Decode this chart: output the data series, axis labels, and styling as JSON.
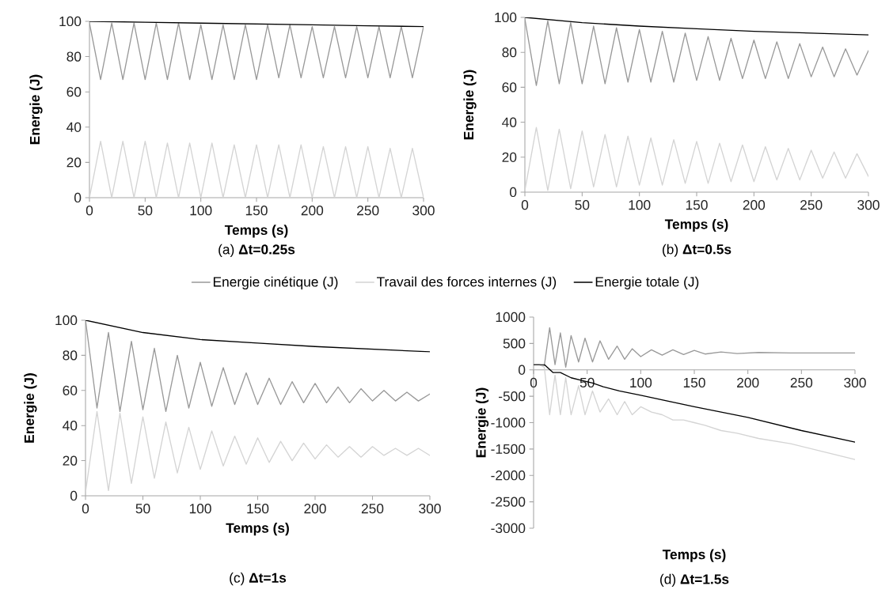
{
  "chart_data": [
    {
      "type": "line",
      "title": "(a) **Δt=0.25s**",
      "xlabel": "Temps (s)",
      "ylabel": "Energie (J)",
      "xlim": [
        0,
        300
      ],
      "ylim": [
        0,
        100
      ],
      "xticks": [
        0,
        50,
        100,
        150,
        200,
        250,
        300
      ],
      "yticks": [
        0,
        20,
        40,
        60,
        80,
        100
      ],
      "x": [
        0,
        10,
        20,
        30,
        40,
        50,
        60,
        70,
        80,
        90,
        100,
        110,
        120,
        130,
        140,
        150,
        160,
        170,
        180,
        190,
        200,
        210,
        220,
        230,
        240,
        250,
        260,
        270,
        280,
        290,
        300
      ],
      "series": [
        {
          "color": "#999999",
          "values": [
            99,
            67,
            99,
            67,
            99,
            67,
            99,
            67,
            99,
            67,
            98,
            67,
            98,
            67,
            98,
            67,
            98,
            68,
            98,
            68,
            97,
            68,
            97,
            68,
            97,
            68,
            97,
            68,
            97,
            68,
            97
          ]
        },
        {
          "color": "#d4d4d4",
          "values": [
            0,
            32,
            0,
            32,
            0,
            32,
            0,
            31,
            0,
            31,
            0,
            31,
            0,
            30,
            0,
            30,
            0,
            30,
            0,
            30,
            0,
            29,
            0,
            29,
            0,
            29,
            0,
            28,
            0,
            28,
            0
          ]
        },
        {
          "color": "#000000",
          "x": [
            0,
            50,
            100,
            150,
            200,
            250,
            300
          ],
          "values": [
            100,
            99.5,
            99,
            98.5,
            98,
            97.5,
            97
          ]
        }
      ]
    },
    {
      "type": "line",
      "title": "(b) **Δt=0.5s**",
      "xlabel": "Temps (s)",
      "ylabel": "Energie (J)",
      "xlim": [
        0,
        300
      ],
      "ylim": [
        0,
        100
      ],
      "xticks": [
        0,
        50,
        100,
        150,
        200,
        250,
        300
      ],
      "yticks": [
        0,
        20,
        40,
        60,
        80,
        100
      ],
      "x": [
        0,
        10,
        20,
        30,
        40,
        50,
        60,
        70,
        80,
        90,
        100,
        110,
        120,
        130,
        140,
        150,
        160,
        170,
        180,
        190,
        200,
        210,
        220,
        230,
        240,
        250,
        260,
        270,
        280,
        290,
        300
      ],
      "series": [
        {
          "color": "#999999",
          "values": [
            99,
            61,
            98,
            62,
            97,
            62,
            95,
            62,
            94,
            63,
            93,
            63,
            92,
            63,
            91,
            64,
            89,
            64,
            88,
            65,
            87,
            65,
            86,
            65,
            85,
            66,
            83,
            66,
            82,
            67,
            81
          ]
        },
        {
          "color": "#d4d4d4",
          "values": [
            1,
            37,
            1,
            36,
            2,
            35,
            3,
            33,
            3,
            32,
            4,
            31,
            4,
            30,
            5,
            29,
            5,
            28,
            6,
            27,
            6,
            26,
            7,
            25,
            7,
            24,
            8,
            23,
            8,
            22,
            9
          ]
        },
        {
          "color": "#000000",
          "x": [
            0,
            50,
            100,
            150,
            200,
            250,
            300
          ],
          "values": [
            100,
            97,
            95,
            93.5,
            92,
            91,
            90
          ]
        }
      ]
    },
    {
      "type": "line",
      "title": "(c) **Δt=1s**",
      "xlabel": "Temps (s)",
      "ylabel": "Energie (J)",
      "xlim": [
        0,
        300
      ],
      "ylim": [
        0,
        100
      ],
      "xticks": [
        0,
        50,
        100,
        150,
        200,
        250,
        300
      ],
      "yticks": [
        0,
        20,
        40,
        60,
        80,
        100
      ],
      "legend": "top",
      "x": [
        0,
        10,
        20,
        30,
        40,
        50,
        60,
        70,
        80,
        90,
        100,
        110,
        120,
        130,
        140,
        150,
        160,
        170,
        180,
        190,
        200,
        210,
        220,
        230,
        240,
        250,
        260,
        270,
        280,
        290,
        300
      ],
      "series": [
        {
          "name": "Energie cinétique (J)",
          "color": "#999999",
          "values": [
            100,
            50,
            93,
            48,
            88,
            49,
            84,
            48,
            80,
            50,
            76,
            51,
            73,
            52,
            70,
            52,
            67,
            52,
            65,
            53,
            64,
            53,
            62,
            53,
            61,
            54,
            60,
            54,
            59,
            54,
            58
          ]
        },
        {
          "name": "Travail des forces internes (J)",
          "color": "#d4d4d4",
          "values": [
            2,
            48,
            3,
            47,
            7,
            45,
            10,
            42,
            13,
            39,
            15,
            37,
            17,
            34,
            18,
            33,
            19,
            31,
            20,
            30,
            21,
            29,
            22,
            28,
            22,
            28,
            23,
            27,
            23,
            27,
            23
          ]
        },
        {
          "name": "Energie totale (J)",
          "color": "#000000",
          "x": [
            0,
            50,
            100,
            150,
            200,
            250,
            300
          ],
          "values": [
            100,
            93,
            89,
            87,
            85,
            83.5,
            82
          ]
        }
      ]
    },
    {
      "type": "line",
      "title": "(d) **Δt=1.5s**",
      "xlabel": "Temps (s)",
      "ylabel": "Energie (J)",
      "xlim": [
        0,
        300
      ],
      "ylim": [
        -3000,
        1000
      ],
      "xticks": [
        0,
        50,
        100,
        150,
        200,
        250,
        300
      ],
      "yticks": [
        -3000,
        -2500,
        -2000,
        -1500,
        -1000,
        -500,
        0,
        500,
        1000
      ],
      "series": [
        {
          "color": "#999999",
          "x": [
            0,
            5,
            10,
            15,
            20,
            25,
            30,
            35,
            42,
            48,
            55,
            62,
            70,
            78,
            85,
            92,
            100,
            110,
            120,
            130,
            140,
            150,
            160,
            175,
            190,
            210,
            240,
            270,
            300
          ],
          "values": [
            100,
            100,
            80,
            800,
            100,
            700,
            50,
            650,
            150,
            600,
            150,
            550,
            200,
            450,
            200,
            400,
            250,
            380,
            280,
            380,
            290,
            370,
            300,
            340,
            310,
            330,
            320,
            320,
            320
          ]
        },
        {
          "color": "#d4d4d4",
          "x": [
            0,
            5,
            10,
            15,
            20,
            25,
            30,
            35,
            42,
            48,
            55,
            62,
            70,
            78,
            85,
            92,
            100,
            110,
            120,
            130,
            140,
            150,
            160,
            175,
            190,
            210,
            240,
            270,
            300
          ],
          "values": [
            100,
            100,
            50,
            -850,
            -100,
            -850,
            -150,
            -850,
            -300,
            -850,
            -400,
            -800,
            -550,
            -850,
            -600,
            -850,
            -700,
            -800,
            -850,
            -950,
            -950,
            -1000,
            -1050,
            -1150,
            -1200,
            -1300,
            -1400,
            -1550,
            -1700
          ]
        },
        {
          "color": "#000000",
          "x": [
            0,
            10,
            18,
            25,
            35,
            45,
            55,
            65,
            80,
            100,
            150,
            200,
            250,
            300
          ],
          "values": [
            100,
            100,
            -50,
            -50,
            -150,
            -200,
            -250,
            -320,
            -400,
            -480,
            -700,
            -900,
            -1150,
            -1370
          ]
        }
      ]
    }
  ]
}
